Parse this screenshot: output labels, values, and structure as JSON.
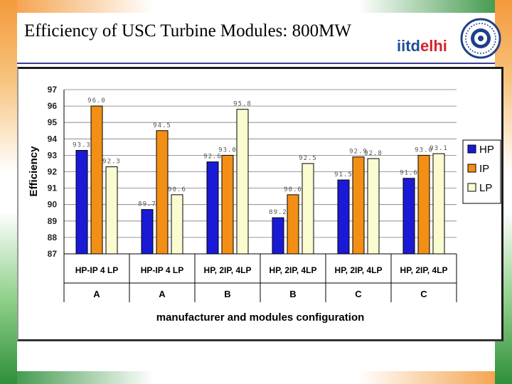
{
  "slide": {
    "title": "Efficiency of USC Turbine Modules: 800MW",
    "logo": {
      "part1": "iitd",
      "part2": "elhi"
    }
  },
  "colors": {
    "HP": "#1a1ad6",
    "IP": "#f28f14",
    "LP": "#fbfbd0",
    "title_rule": "#3a3a9a"
  },
  "icons": {
    "logo_seal": "institute-seal-icon"
  },
  "chart_data": {
    "type": "bar",
    "ylabel": "Efficiency",
    "xlabel": "manufacturer and modules configuration",
    "ylim": [
      87,
      97
    ],
    "yticks": [
      87,
      88,
      89,
      90,
      91,
      92,
      93,
      94,
      95,
      96,
      97
    ],
    "grid": "horizontal",
    "legend_position": "right",
    "categories": [
      {
        "config": "HP-IP 4 LP",
        "manufacturer": "A"
      },
      {
        "config": "HP-IP 4 LP",
        "manufacturer": "A"
      },
      {
        "config": "HP, 2IP, 4LP",
        "manufacturer": "B"
      },
      {
        "config": "HP, 2IP, 4LP",
        "manufacturer": "B"
      },
      {
        "config": "HP, 2IP, 4LP",
        "manufacturer": "C"
      },
      {
        "config": "HP, 2IP, 4LP",
        "manufacturer": "C"
      }
    ],
    "series": [
      {
        "name": "HP",
        "values": [
          93.3,
          89.7,
          92.6,
          89.2,
          91.5,
          91.6
        ],
        "labels": [
          "93.3",
          "89.7",
          "92.6",
          "89.2",
          "91.5",
          "91.6"
        ]
      },
      {
        "name": "IP",
        "values": [
          96.0,
          94.5,
          93.0,
          90.6,
          92.9,
          93.0
        ],
        "labels": [
          "96.0",
          "94.5",
          "93.0",
          "90.6",
          "92.9",
          "93.0"
        ]
      },
      {
        "name": "LP",
        "values": [
          92.3,
          90.6,
          95.8,
          92.5,
          92.8,
          93.1
        ],
        "labels": [
          "92.3",
          "90.6",
          "95.8",
          "92.5",
          "92.8",
          "93.1"
        ]
      }
    ]
  }
}
